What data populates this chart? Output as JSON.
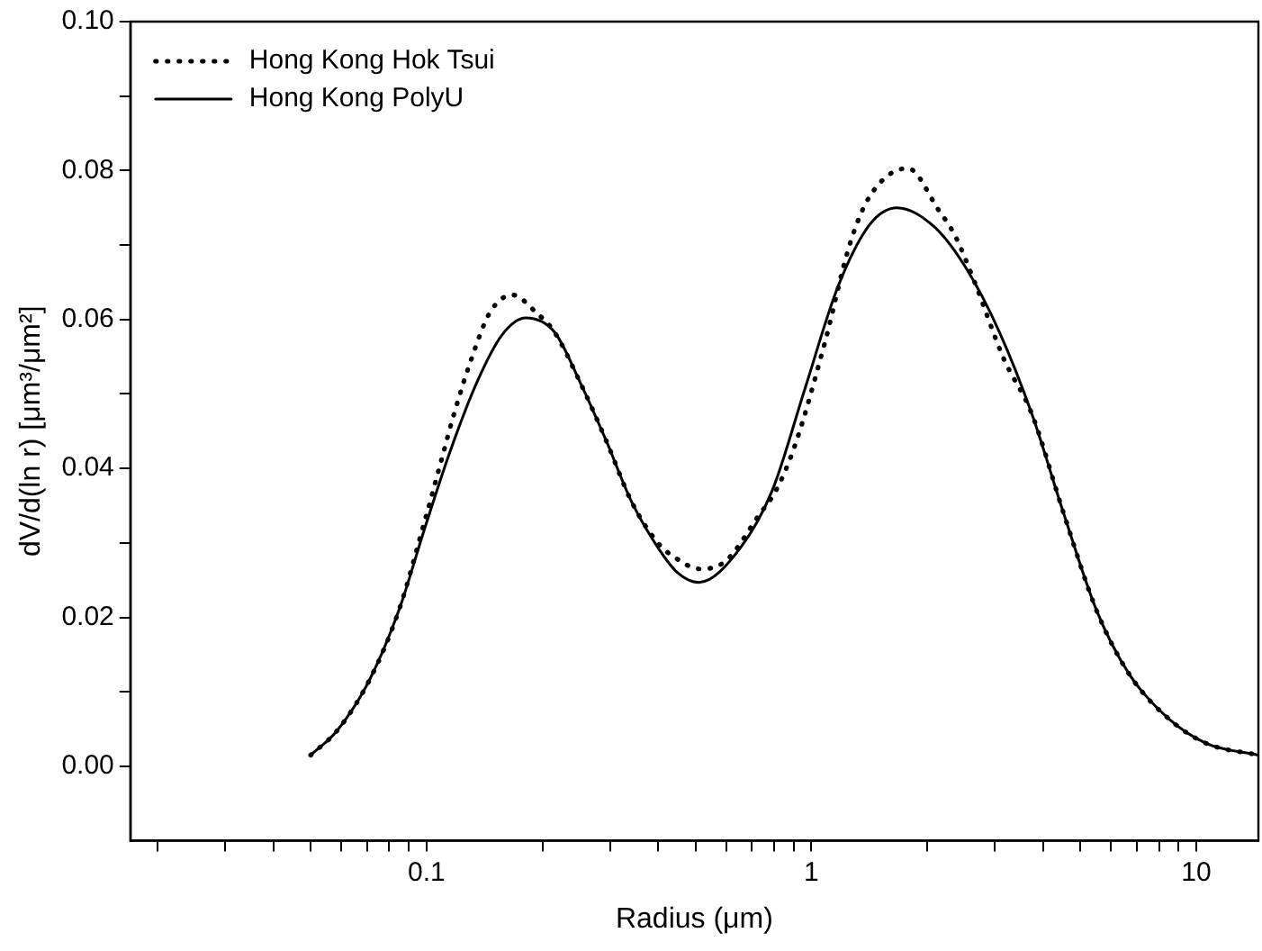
{
  "chart_data": {
    "type": "line",
    "xlabel": "Radius (μm)",
    "ylabel": "dV/d(ln r) [μm³/μm²]",
    "log": "x",
    "xlim": [
      0.017,
      14.5
    ],
    "ylim": [
      -0.01,
      0.1
    ],
    "xticks": [
      {
        "value": 0.02,
        "label": null
      },
      {
        "value": 0.03,
        "label": null
      },
      {
        "value": 0.04,
        "label": null
      },
      {
        "value": 0.05,
        "label": null
      },
      {
        "value": 0.06,
        "label": null
      },
      {
        "value": 0.07,
        "label": null
      },
      {
        "value": 0.08,
        "label": null
      },
      {
        "value": 0.09,
        "label": null
      },
      0.1,
      {
        "value": 0.2,
        "label": null
      },
      {
        "value": 0.3,
        "label": null
      },
      {
        "value": 0.4,
        "label": null
      },
      {
        "value": 0.5,
        "label": null
      },
      {
        "value": 0.6,
        "label": null
      },
      {
        "value": 0.7,
        "label": null
      },
      {
        "value": 0.8,
        "label": null
      },
      {
        "value": 0.9,
        "label": null
      },
      1,
      {
        "value": 2,
        "label": null
      },
      {
        "value": 3,
        "label": null
      },
      {
        "value": 4,
        "label": null
      },
      {
        "value": 5,
        "label": null
      },
      {
        "value": 6,
        "label": null
      },
      {
        "value": 7,
        "label": null
      },
      {
        "value": 8,
        "label": null
      },
      {
        "value": 9,
        "label": null
      },
      10
    ],
    "yticks": [
      {
        "value": 0,
        "label": "0.00"
      },
      {
        "value": 0.01,
        "label": null
      },
      {
        "value": 0.02,
        "label": "0.02"
      },
      {
        "value": 0.03,
        "label": null
      },
      {
        "value": 0.04,
        "label": "0.04"
      },
      {
        "value": 0.05,
        "label": null
      },
      {
        "value": 0.06,
        "label": "0.06"
      },
      {
        "value": 0.07,
        "label": null
      },
      {
        "value": 0.08,
        "label": "0.08"
      },
      {
        "value": 0.09,
        "label": null
      },
      {
        "value": 0.1,
        "label": "0.10"
      }
    ],
    "grid": false,
    "legend": "top left",
    "marker": "none",
    "series": [
      {
        "name": "Hong Kong Hok Tsui",
        "color": "#000000",
        "line_style": "dotted",
        "x": [
          0.05,
          0.0586,
          0.0711,
          0.0847,
          0.099,
          0.109,
          0.118,
          0.13,
          0.146,
          0.167,
          0.193,
          0.215,
          0.251,
          0.292,
          0.342,
          0.399,
          0.44,
          0.515,
          0.6,
          0.73,
          0.81,
          0.905,
          1.08,
          1.26,
          1.42,
          1.78,
          2.14,
          2.37,
          2.67,
          3.15,
          3.74,
          4.54,
          5.51,
          6.69,
          8.43,
          10.6,
          14.5
        ],
        "values": [
          0.0015,
          0.0048,
          0.0116,
          0.0209,
          0.033,
          0.0409,
          0.0474,
          0.0543,
          0.0609,
          0.0633,
          0.0609,
          0.0583,
          0.0515,
          0.0439,
          0.0354,
          0.03,
          0.0281,
          0.0265,
          0.0276,
          0.0337,
          0.0371,
          0.043,
          0.0566,
          0.0702,
          0.0766,
          0.0803,
          0.0747,
          0.0711,
          0.0647,
          0.0549,
          0.0473,
          0.0337,
          0.0209,
          0.0124,
          0.0065,
          0.0031,
          0.0015
        ]
      },
      {
        "name": "Hong Kong PolyU",
        "color": "#000000",
        "line_style": "solid",
        "x": [
          0.05,
          0.0586,
          0.0711,
          0.0847,
          0.099,
          0.115,
          0.135,
          0.157,
          0.181,
          0.215,
          0.251,
          0.292,
          0.342,
          0.399,
          0.449,
          0.51,
          0.655,
          0.792,
          0.962,
          1.17,
          1.42,
          1.67,
          2.09,
          2.53,
          3.08,
          3.74,
          4.54,
          5.51,
          6.69,
          8.43,
          10.6,
          14.5
        ],
        "values": [
          0.0015,
          0.0048,
          0.0116,
          0.0209,
          0.032,
          0.0422,
          0.0515,
          0.0579,
          0.0602,
          0.0583,
          0.0515,
          0.0439,
          0.0354,
          0.0294,
          0.026,
          0.0247,
          0.0294,
          0.0371,
          0.0507,
          0.0643,
          0.0728,
          0.075,
          0.0724,
          0.0668,
          0.0583,
          0.0473,
          0.0337,
          0.0209,
          0.0124,
          0.0065,
          0.0031,
          0.0015
        ]
      }
    ]
  }
}
